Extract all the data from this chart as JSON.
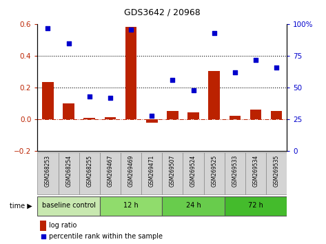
{
  "title": "GDS3642 / 20968",
  "samples": [
    "GSM268253",
    "GSM268254",
    "GSM268255",
    "GSM269467",
    "GSM269469",
    "GSM269471",
    "GSM269507",
    "GSM269524",
    "GSM269525",
    "GSM269533",
    "GSM269534",
    "GSM269535"
  ],
  "log_ratio": [
    0.235,
    0.1,
    0.012,
    0.015,
    0.585,
    -0.018,
    0.055,
    0.045,
    0.305,
    0.025,
    0.065,
    0.055
  ],
  "percentile_rank": [
    97,
    85,
    43,
    42,
    96,
    28,
    56,
    48,
    93,
    62,
    72,
    66
  ],
  "groups": [
    {
      "label": "baseline control",
      "start": 0,
      "end": 3,
      "color": "#c8e8b0"
    },
    {
      "label": "12 h",
      "start": 3,
      "end": 6,
      "color": "#90dc6c"
    },
    {
      "label": "24 h",
      "start": 6,
      "end": 9,
      "color": "#68cc4c"
    },
    {
      "label": "72 h",
      "start": 9,
      "end": 12,
      "color": "#44bb2c"
    }
  ],
  "bar_color": "#bb2200",
  "dot_color": "#0000cc",
  "ylim_left": [
    -0.2,
    0.6
  ],
  "ylim_right": [
    0,
    100
  ],
  "yticks_left": [
    -0.2,
    0.0,
    0.2,
    0.4,
    0.6
  ],
  "yticks_right": [
    0,
    25,
    50,
    75,
    100
  ],
  "ytick_labels_right": [
    "0",
    "25",
    "50",
    "75",
    "100%"
  ],
  "hlines": [
    0.2,
    0.4
  ],
  "background_color": "#ffffff",
  "sample_label_bg": "#d4d4d4",
  "sample_label_edge": "#888888"
}
